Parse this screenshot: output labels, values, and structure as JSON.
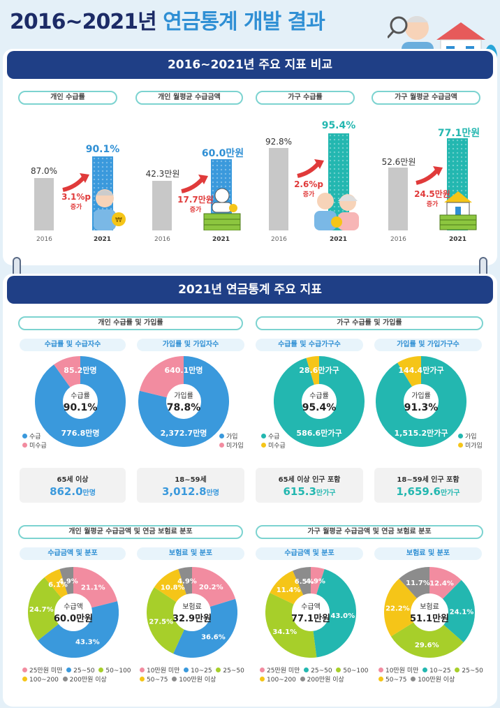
{
  "title": {
    "part1": "2016~2021년 ",
    "part2": "연금통계 개발 결과"
  },
  "section1": {
    "banner": "2016~2021년 주요 지표 비교",
    "charts": [
      {
        "label": "개인 수급률",
        "y2016": "87.0%",
        "y2021": "90.1%",
        "inc_value": "3.1%p",
        "inc_word": "증가",
        "v2016": 87.0,
        "v2021": 90.1
      },
      {
        "label": "개인 월평균 수급금액",
        "y2016": "42.3만원",
        "y2021": "60.0만원",
        "inc_value": "17.7만원",
        "inc_word": "증가",
        "v2016": 42.3,
        "v2021": 60.0
      },
      {
        "label": "가구 수급률",
        "y2016": "92.8%",
        "y2021": "95.4%",
        "inc_value": "2.6%p",
        "inc_word": "증가",
        "v2016": 92.8,
        "v2021": 95.4
      },
      {
        "label": "가구 월평균 수급금액",
        "y2016": "52.6만원",
        "y2021": "77.1만원",
        "inc_value": "24.5만원",
        "inc_word": "증가",
        "v2016": 52.6,
        "v2021": 77.1
      }
    ],
    "year1": "2016",
    "year2": "2021"
  },
  "section2": {
    "banner": "2021년 연금통계 주요 지표",
    "groupA": "개인 수급률 및 가입률",
    "groupB": "가구 수급률 및 가입률",
    "groupC": "개인 월평균 수급금액 및 연금 보험료 분포",
    "groupD": "가구 월평균 수급금액 및 연금 보험료 분포",
    "sub": [
      "수급률 및 수급자수",
      "가입률 및 가입자수",
      "수급률 및 수급가구수",
      "가입률 및 가입가구수",
      "수급금액 및 분포",
      "보험료 및 분포",
      "수급금액 및 분포",
      "보험료 및 분포"
    ],
    "rate_donuts": [
      {
        "center_label": "수급률",
        "center_value": "90.1%",
        "top": "85.2만명",
        "bottom": "776.8만명",
        "legend": [
          "수급",
          "미수급"
        ]
      },
      {
        "center_label": "가입률",
        "center_value": "78.8%",
        "top": "640.1만명",
        "bottom": "2,372.7만명",
        "legend": [
          "가입",
          "미가입"
        ]
      },
      {
        "center_label": "수급률",
        "center_value": "95.4%",
        "top": "28.6만가구",
        "bottom": "586.6만가구",
        "legend": [
          "수급",
          "미수급"
        ]
      },
      {
        "center_label": "가입률",
        "center_value": "91.3%",
        "top": "144.4만가구",
        "bottom": "1,515.2만가구",
        "legend": [
          "가입",
          "미가입"
        ]
      }
    ],
    "stats": [
      {
        "label": "65세 이상",
        "value": "862.0",
        "unit": "만명"
      },
      {
        "label": "18~59세",
        "value": "3,012.8",
        "unit": "만명"
      },
      {
        "label": "65세 이상 인구 포함",
        "value": "615.3",
        "unit": "만가구"
      },
      {
        "label": "18~59세 인구 포함",
        "value": "1,659.6",
        "unit": "만가구"
      }
    ],
    "dist_donuts": [
      {
        "center_label": "수급액",
        "center_value": "60.0만원",
        "slices": [
          "21.1%",
          "43.3%",
          "24.7%",
          "6.1%",
          "4.9%"
        ],
        "legend": [
          "25만원 미만",
          "25~50",
          "50~100",
          "100~200",
          "200만원 이상"
        ]
      },
      {
        "center_label": "보험료",
        "center_value": "32.9만원",
        "slices": [
          "20.2%",
          "36.6%",
          "27.5%",
          "10.8%",
          "4.9%"
        ],
        "legend": [
          "10만원 미만",
          "10~25",
          "25~50",
          "50~75",
          "100만원 이상"
        ]
      },
      {
        "center_label": "수급액",
        "center_value": "77.1만원",
        "slices": [
          "4.9%",
          "43.0%",
          "34.1%",
          "11.4%",
          "6.5%"
        ],
        "legend": [
          "25만원 미만",
          "25~50",
          "50~100",
          "100~200",
          "200만원 이상"
        ]
      },
      {
        "center_label": "보험료",
        "center_value": "51.1만원",
        "slices": [
          "12.4%",
          "24.1%",
          "29.6%",
          "22.2%",
          "11.7%"
        ],
        "legend": [
          "10만원 미만",
          "10~25",
          "25~50",
          "50~75",
          "100만원 이상"
        ]
      }
    ]
  },
  "chart_data": [
    {
      "type": "bar",
      "title": "개인 수급률",
      "categories": [
        "2016",
        "2021"
      ],
      "values": [
        87.0,
        90.1
      ],
      "unit": "%"
    },
    {
      "type": "bar",
      "title": "개인 월평균 수급금액",
      "categories": [
        "2016",
        "2021"
      ],
      "values": [
        42.3,
        60.0
      ],
      "unit": "만원"
    },
    {
      "type": "bar",
      "title": "가구 수급률",
      "categories": [
        "2016",
        "2021"
      ],
      "values": [
        92.8,
        95.4
      ],
      "unit": "%"
    },
    {
      "type": "bar",
      "title": "가구 월평균 수급금액",
      "categories": [
        "2016",
        "2021"
      ],
      "values": [
        52.6,
        77.1
      ],
      "unit": "만원"
    },
    {
      "type": "pie",
      "title": "개인 수급률",
      "categories": [
        "수급",
        "미수급"
      ],
      "values": [
        90.1,
        9.9
      ]
    },
    {
      "type": "pie",
      "title": "개인 가입률",
      "categories": [
        "가입",
        "미가입"
      ],
      "values": [
        78.8,
        21.2
      ]
    },
    {
      "type": "pie",
      "title": "가구 수급률",
      "categories": [
        "수급",
        "미수급"
      ],
      "values": [
        95.4,
        4.6
      ]
    },
    {
      "type": "pie",
      "title": "가구 가입률",
      "categories": [
        "가입",
        "미가입"
      ],
      "values": [
        91.3,
        8.7
      ]
    },
    {
      "type": "pie",
      "title": "개인 수급금액 분포",
      "categories": [
        "25만원 미만",
        "25~50",
        "50~100",
        "100~200",
        "200만원 이상"
      ],
      "values": [
        21.1,
        43.3,
        24.7,
        6.1,
        4.9
      ]
    },
    {
      "type": "pie",
      "title": "개인 보험료 분포",
      "categories": [
        "10만원 미만",
        "10~25",
        "25~50",
        "50~75",
        "100만원 이상"
      ],
      "values": [
        20.2,
        36.6,
        27.5,
        10.8,
        4.9
      ]
    },
    {
      "type": "pie",
      "title": "가구 수급금액 분포",
      "categories": [
        "25만원 미만",
        "25~50",
        "50~100",
        "100~200",
        "200만원 이상"
      ],
      "values": [
        4.9,
        43.0,
        34.1,
        11.4,
        6.5
      ]
    },
    {
      "type": "pie",
      "title": "가구 보험료 분포",
      "categories": [
        "10만원 미만",
        "10~25",
        "25~50",
        "50~75",
        "100만원 이상"
      ],
      "values": [
        12.4,
        24.1,
        29.6,
        22.2,
        11.7
      ]
    }
  ],
  "colors": {
    "navy": "#1f3f86",
    "blue": "#3a99dc",
    "teal": "#23b7b0",
    "pink": "#f28ca0",
    "yellow": "#f5c518",
    "green": "#a7cf2a",
    "grey": "#8c8c8c",
    "red": "#e03a3a"
  }
}
